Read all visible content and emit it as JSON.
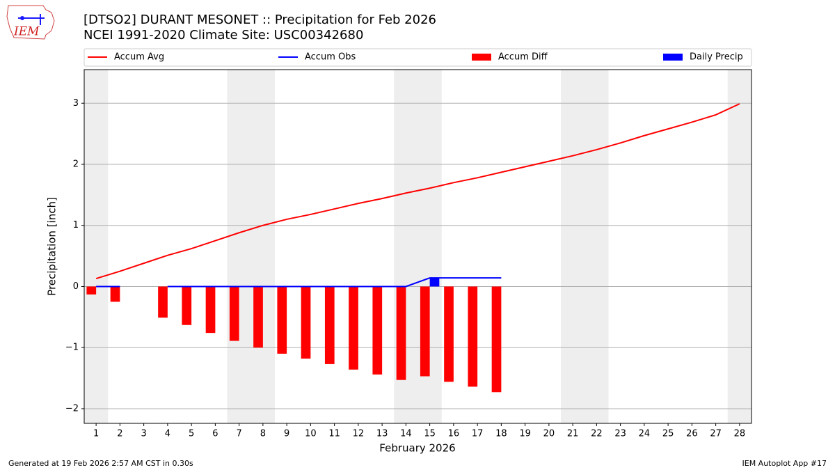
{
  "logo_text": "IEM",
  "chart_data": {
    "type": "bar-line",
    "title": "[DTSO2] DURANT MESONET :: Precipitation for Feb 2026",
    "subtitle": "NCEI 1991-2020 Climate Site: USC00342680",
    "xlabel": "February 2026",
    "ylabel": "Precipitation [inch]",
    "x": [
      1,
      2,
      3,
      4,
      5,
      6,
      7,
      8,
      9,
      10,
      11,
      12,
      13,
      14,
      15,
      16,
      17,
      18,
      19,
      20,
      21,
      22,
      23,
      24,
      25,
      26,
      27,
      28
    ],
    "xlim": [
      0.5,
      28.5
    ],
    "xticks": [
      1,
      2,
      3,
      4,
      5,
      6,
      7,
      8,
      9,
      10,
      11,
      12,
      13,
      14,
      15,
      16,
      17,
      18,
      19,
      20,
      21,
      22,
      23,
      24,
      25,
      26,
      27,
      28
    ],
    "ylim": [
      -2.24,
      3.55
    ],
    "yticks": [
      {
        "value": -2,
        "label": "−2"
      },
      {
        "value": -1,
        "label": "−1"
      },
      0,
      1,
      2,
      3
    ],
    "grid": true,
    "shade_ranges": [
      [
        0.5,
        1.5
      ],
      [
        6.5,
        8.5
      ],
      [
        13.5,
        15.5
      ],
      [
        20.5,
        22.5
      ],
      [
        27.5,
        28.5
      ]
    ],
    "shade_color": "#eeeeee",
    "series": [
      {
        "name": "Accum Avg",
        "type": "line",
        "color": "#ff0000",
        "values": [
          0.13,
          0.25,
          0.38,
          0.51,
          0.62,
          0.75,
          0.88,
          1.0,
          1.1,
          1.18,
          1.27,
          1.36,
          1.44,
          1.53,
          1.61,
          1.7,
          1.78,
          1.87,
          1.96,
          2.05,
          2.14,
          2.24,
          2.35,
          2.47,
          2.58,
          2.69,
          2.81,
          2.99
        ]
      },
      {
        "name": "Accum Obs",
        "type": "line",
        "color": "#0000ff",
        "values": [
          0,
          0,
          null,
          0,
          0,
          0,
          0,
          0,
          0,
          0,
          0,
          0,
          0,
          0,
          0.14,
          0.14,
          0.14,
          0.14,
          null,
          null,
          null,
          null,
          null,
          null,
          null,
          null,
          null,
          null
        ]
      },
      {
        "name": "Accum Diff",
        "type": "bar",
        "color": "#ff0000",
        "offset": -0.4,
        "values": [
          -0.13,
          -0.25,
          null,
          -0.51,
          -0.63,
          -0.76,
          -0.89,
          -1.0,
          -1.1,
          -1.18,
          -1.27,
          -1.36,
          -1.44,
          -1.53,
          -1.47,
          -1.56,
          -1.64,
          -1.73,
          null,
          null,
          null,
          null,
          null,
          null,
          null,
          null,
          null,
          null
        ]
      },
      {
        "name": "Daily Precip",
        "type": "bar",
        "color": "#0000ff",
        "offset": 0,
        "values": [
          0,
          0,
          null,
          0,
          0,
          0,
          0,
          0,
          0,
          0,
          0,
          0,
          0,
          0,
          0.14,
          0,
          0,
          0,
          null,
          null,
          null,
          null,
          null,
          null,
          null,
          null,
          null,
          null
        ]
      }
    ],
    "footer_left": "Generated at 19 Feb 2026 2:57 AM CST in 0.30s",
    "footer_right": "IEM Autoplot App #17"
  }
}
